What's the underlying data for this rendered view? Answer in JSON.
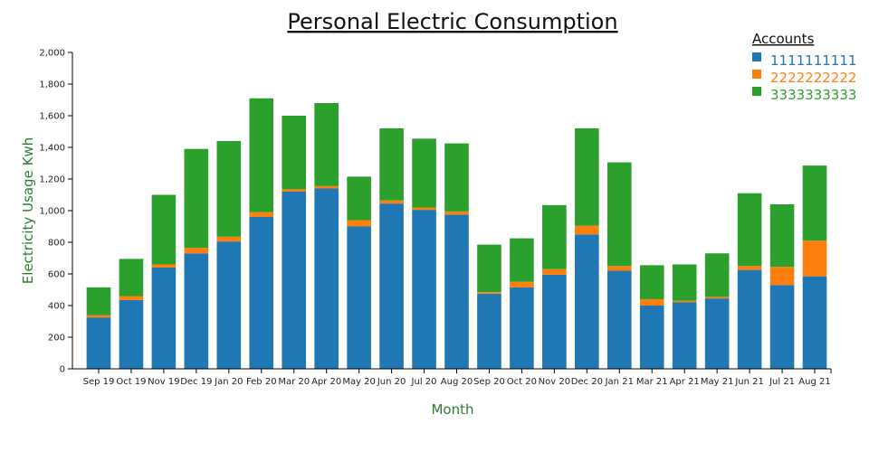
{
  "chart_data": {
    "type": "bar",
    "stacked": true,
    "title": "Personal Electric Consumption",
    "xlabel": "Month",
    "ylabel": "Electricity Usage Kwh",
    "ylim": [
      0,
      2000
    ],
    "yticks": [
      0,
      200,
      400,
      600,
      800,
      1000,
      1200,
      1400,
      1600,
      1800,
      2000
    ],
    "ytick_labels": [
      "0",
      "200",
      "400",
      "600",
      "800",
      "1,000",
      "1,200",
      "1,400",
      "1,600",
      "1,800",
      "2,000"
    ],
    "grid": false,
    "legend": {
      "title": "Accounts",
      "position": "top-right"
    },
    "categories": [
      "Sep 19",
      "Oct 19",
      "Nov 19",
      "Dec 19",
      "Jan 20",
      "Feb 20",
      "Mar 20",
      "Apr 20",
      "May 20",
      "Jun 20",
      "Jul 20",
      "Aug 20",
      "Sep 20",
      "Oct 20",
      "Nov 20",
      "Dec 20",
      "Jan 21",
      "Mar 21",
      "Apr 21",
      "May 21",
      "Jun 21",
      "Jul 21",
      "Aug 21"
    ],
    "series": [
      {
        "name": "1111111111",
        "color": "#1f77b4",
        "values": [
          325,
          435,
          640,
          730,
          805,
          960,
          1120,
          1140,
          900,
          1045,
          1005,
          975,
          475,
          515,
          595,
          850,
          620,
          400,
          420,
          445,
          625,
          530,
          585
        ]
      },
      {
        "name": "2222222222",
        "color": "#ff7f0e",
        "values": [
          15,
          25,
          20,
          35,
          30,
          30,
          15,
          15,
          40,
          20,
          15,
          20,
          10,
          35,
          35,
          55,
          30,
          40,
          10,
          10,
          25,
          115,
          225
        ]
      },
      {
        "name": "3333333333",
        "color": "#2ca02c",
        "values": [
          175,
          235,
          440,
          625,
          605,
          720,
          465,
          525,
          275,
          455,
          435,
          430,
          300,
          275,
          405,
          615,
          655,
          215,
          230,
          275,
          460,
          395,
          475
        ]
      }
    ]
  }
}
